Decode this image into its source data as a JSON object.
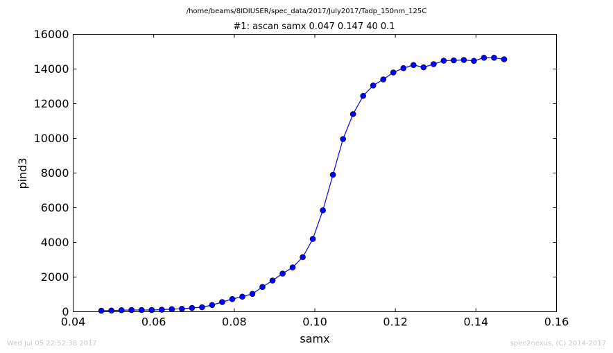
{
  "chart_data": {
    "type": "line",
    "suptitle": "/home/beams/8IDIUSER/spec_data/2017/July2017/Tadp_150nm_125C",
    "title": "#1: ascan  samx 0.047 0.147  40 0.1",
    "xlabel": "samx",
    "ylabel": "pind3",
    "xlim": [
      0.04,
      0.16
    ],
    "ylim": [
      0,
      16000
    ],
    "xticks": [
      "0.04",
      "0.06",
      "0.08",
      "0.10",
      "0.12",
      "0.14",
      "0.16"
    ],
    "yticks": [
      "0",
      "2000",
      "4000",
      "6000",
      "8000",
      "10000",
      "12000",
      "14000",
      "16000"
    ],
    "grid": false,
    "series": [
      {
        "color": "#0000ff",
        "marker": "circle",
        "x": [
          0.047,
          0.0495,
          0.052,
          0.0545,
          0.057,
          0.0595,
          0.062,
          0.0645,
          0.067,
          0.0695,
          0.072,
          0.0745,
          0.077,
          0.0795,
          0.082,
          0.0845,
          0.087,
          0.0895,
          0.092,
          0.0945,
          0.097,
          0.0995,
          0.102,
          0.1045,
          0.107,
          0.1095,
          0.112,
          0.1145,
          0.117,
          0.1195,
          0.122,
          0.1245,
          0.127,
          0.1295,
          0.132,
          0.1345,
          0.137,
          0.1395,
          0.142,
          0.1445,
          0.147
        ],
        "y": [
          60,
          70,
          90,
          100,
          100,
          100,
          120,
          150,
          170,
          220,
          260,
          390,
          560,
          730,
          870,
          1030,
          1430,
          1800,
          2200,
          2560,
          3150,
          4200,
          5850,
          7900,
          9960,
          11400,
          12450,
          13050,
          13400,
          13800,
          14050,
          14230,
          14100,
          14280,
          14480,
          14500,
          14520,
          14470,
          14650,
          14650,
          14560
        ]
      }
    ]
  },
  "footer": {
    "timestamp": "Wed Jul 05 22:52:38 2017",
    "credit": "spec2nexus, (C) 2014-2017"
  }
}
